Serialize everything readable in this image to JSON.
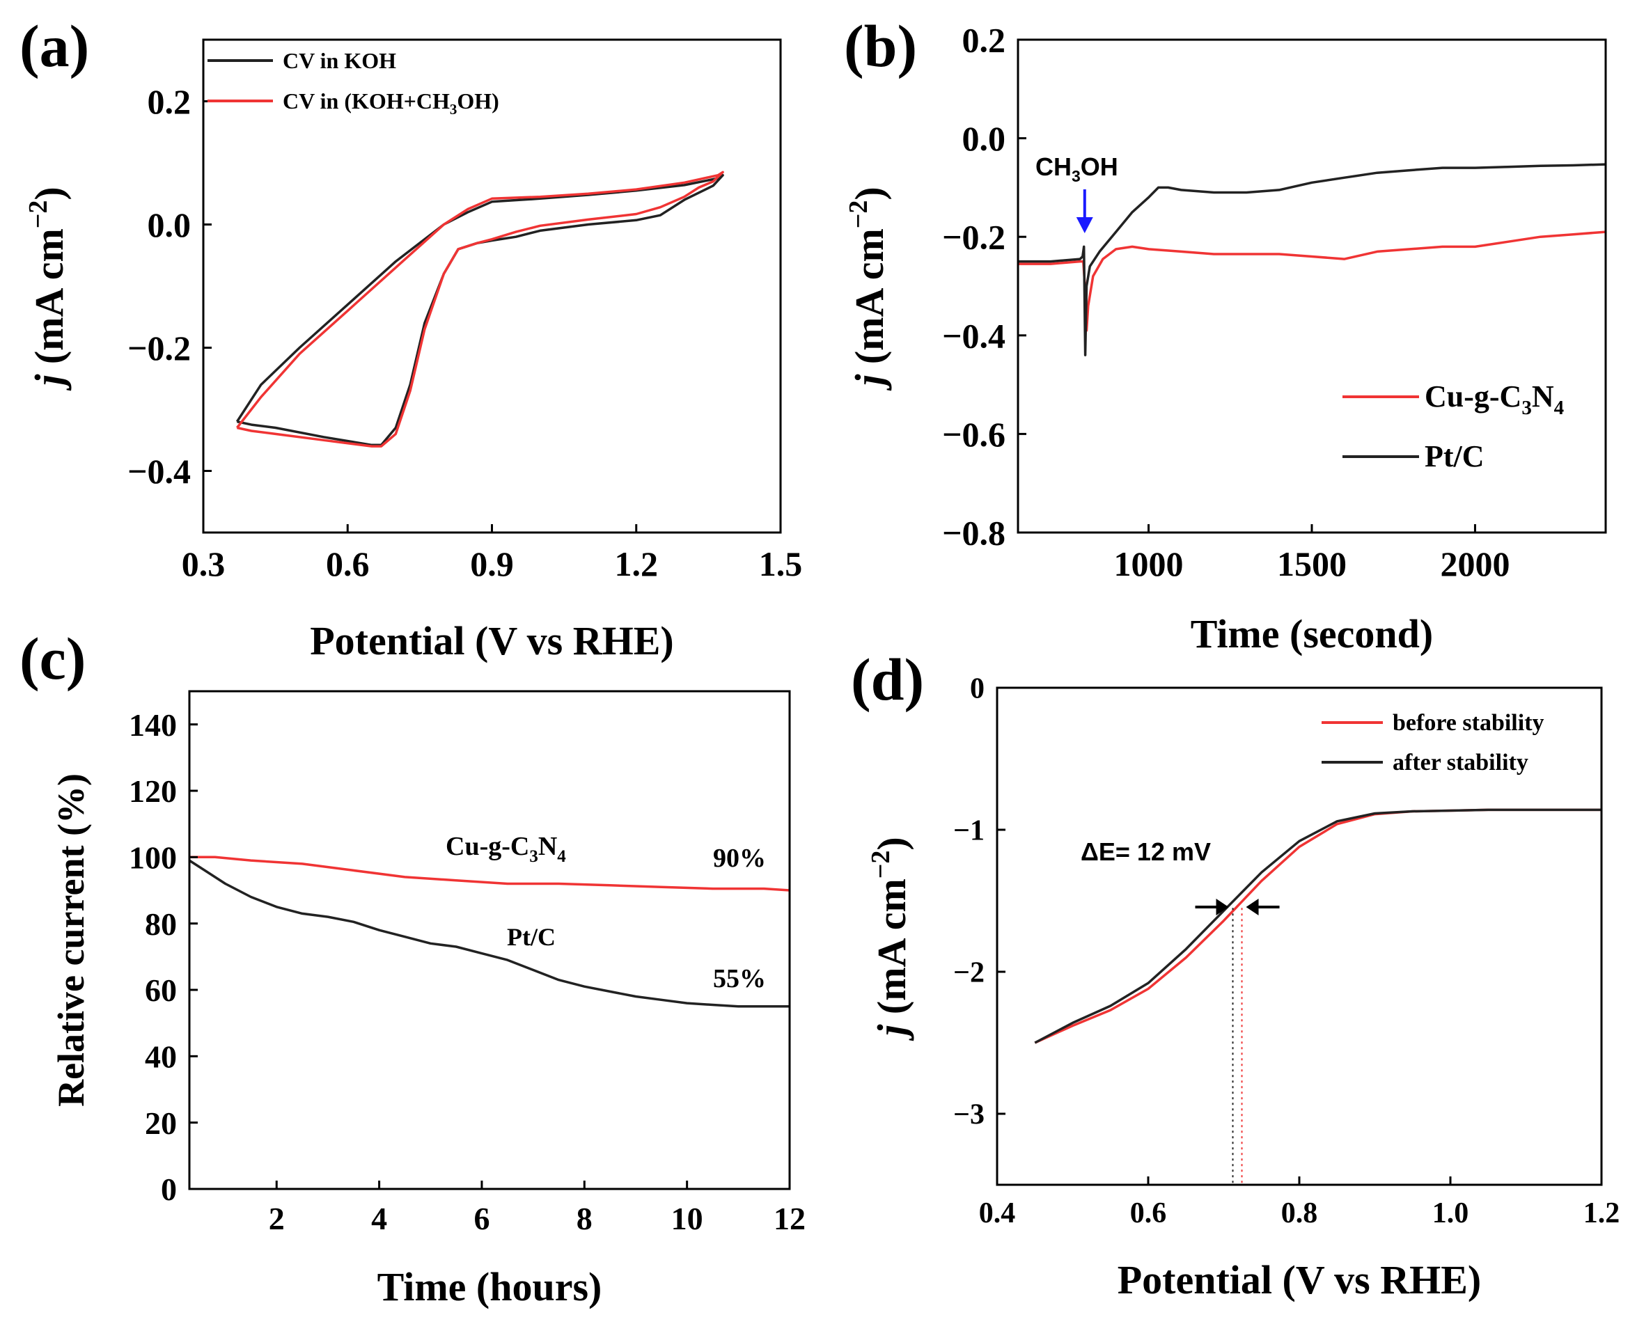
{
  "colors": {
    "red": "#f03434",
    "black": "#222222",
    "blue": "#1a1aff"
  },
  "chart_data": [
    {
      "id": "a",
      "panel_label": "(a)",
      "type": "line",
      "xlabel": "Potential (V vs RHE)",
      "ylabel": "j (mA cm-2)",
      "xlim": [
        0.3,
        1.5
      ],
      "ylim": [
        -0.5,
        0.3
      ],
      "xticks": [
        0.3,
        0.6,
        0.9,
        1.2,
        1.5
      ],
      "xtick_labels": [
        "0.3",
        "0.6",
        "0.9",
        "1.2",
        "1.5"
      ],
      "yticks": [
        -0.4,
        -0.2,
        0.0,
        0.2
      ],
      "ytick_labels": [
        "-0.4",
        "-0.2",
        "0.0",
        "0.2"
      ],
      "legend": "top-left",
      "series": [
        {
          "name": "CV in KOH",
          "color": "black",
          "x": [
            0.37,
            0.42,
            0.5,
            0.6,
            0.7,
            0.8,
            0.85,
            0.9,
            1.0,
            1.1,
            1.2,
            1.3,
            1.37,
            1.38,
            1.36,
            1.3,
            1.25,
            1.2,
            1.1,
            1.0,
            0.95,
            0.9,
            0.87,
            0.83,
            0.8,
            0.76,
            0.73,
            0.7,
            0.67,
            0.65,
            0.55,
            0.45,
            0.4,
            0.37
          ],
          "y": [
            -0.32,
            -0.26,
            -0.2,
            -0.13,
            -0.06,
            0.0,
            0.02,
            0.037,
            0.042,
            0.048,
            0.055,
            0.064,
            0.075,
            0.08,
            0.063,
            0.04,
            0.015,
            0.007,
            0.0,
            -0.01,
            -0.02,
            -0.026,
            -0.03,
            -0.04,
            -0.08,
            -0.16,
            -0.26,
            -0.33,
            -0.358,
            -0.358,
            -0.345,
            -0.33,
            -0.325,
            -0.32
          ]
        },
        {
          "name": "CV in (KOH+CH3OH)",
          "color": "red",
          "x": [
            0.37,
            0.42,
            0.5,
            0.6,
            0.7,
            0.8,
            0.85,
            0.9,
            1.0,
            1.1,
            1.2,
            1.3,
            1.37,
            1.38,
            1.36,
            1.33,
            1.3,
            1.25,
            1.2,
            1.1,
            1.0,
            0.95,
            0.9,
            0.87,
            0.83,
            0.8,
            0.76,
            0.73,
            0.7,
            0.67,
            0.65,
            0.55,
            0.45,
            0.4,
            0.37
          ],
          "y": [
            -0.33,
            -0.28,
            -0.21,
            -0.14,
            -0.07,
            0.0,
            0.025,
            0.042,
            0.045,
            0.05,
            0.057,
            0.068,
            0.08,
            0.085,
            0.07,
            0.06,
            0.045,
            0.028,
            0.017,
            0.008,
            -0.002,
            -0.012,
            -0.024,
            -0.03,
            -0.04,
            -0.08,
            -0.17,
            -0.27,
            -0.34,
            -0.36,
            -0.36,
            -0.35,
            -0.34,
            -0.335,
            -0.33
          ]
        }
      ]
    },
    {
      "id": "b",
      "panel_label": "(b)",
      "type": "line",
      "xlabel": "Time (second)",
      "ylabel": "j (mA cm-2)",
      "xlim": [
        600,
        2400
      ],
      "ylim": [
        -0.8,
        0.2
      ],
      "xticks": [
        1000,
        1500,
        2000
      ],
      "xtick_labels": [
        "1000",
        "1500",
        "2000"
      ],
      "yticks": [
        -0.8,
        -0.6,
        -0.4,
        -0.2,
        0.0,
        0.2
      ],
      "ytick_labels": [
        "-0.8",
        "-0.6",
        "-0.4",
        "-0.2",
        "0.0",
        "0.2"
      ],
      "legend": "bottom-right",
      "annotation": "CH3OH",
      "annotation_x": 800,
      "series": [
        {
          "name": "Cu-g-C3N4",
          "color": "red",
          "x": [
            600,
            700,
            790,
            800,
            805,
            810,
            815,
            830,
            860,
            900,
            950,
            1000,
            1100,
            1200,
            1300,
            1400,
            1500,
            1600,
            1700,
            1800,
            1900,
            2000,
            2100,
            2200,
            2300,
            2400
          ],
          "y": [
            -0.255,
            -0.255,
            -0.25,
            -0.25,
            -0.3,
            -0.39,
            -0.34,
            -0.28,
            -0.245,
            -0.225,
            -0.22,
            -0.225,
            -0.23,
            -0.235,
            -0.235,
            -0.235,
            -0.24,
            -0.245,
            -0.23,
            -0.225,
            -0.22,
            -0.22,
            -0.21,
            -0.2,
            -0.195,
            -0.19
          ]
        },
        {
          "name": "Pt/C",
          "color": "black",
          "x": [
            600,
            700,
            790,
            798,
            802,
            806,
            810,
            820,
            850,
            900,
            950,
            1000,
            1030,
            1060,
            1100,
            1200,
            1300,
            1400,
            1500,
            1600,
            1700,
            1800,
            1900,
            2000,
            2100,
            2200,
            2300,
            2400
          ],
          "y": [
            -0.25,
            -0.25,
            -0.245,
            -0.24,
            -0.22,
            -0.44,
            -0.3,
            -0.26,
            -0.23,
            -0.19,
            -0.15,
            -0.12,
            -0.1,
            -0.1,
            -0.105,
            -0.11,
            -0.11,
            -0.105,
            -0.09,
            -0.08,
            -0.07,
            -0.065,
            -0.06,
            -0.06,
            -0.058,
            -0.056,
            -0.055,
            -0.053
          ]
        }
      ]
    },
    {
      "id": "c",
      "panel_label": "(c)",
      "type": "line",
      "xlabel": "Time (hours)",
      "ylabel": "Relative current (%)",
      "xlim": [
        0.3,
        12
      ],
      "ylim": [
        0,
        150
      ],
      "xticks": [
        2,
        4,
        6,
        8,
        10,
        12
      ],
      "xtick_labels": [
        "2",
        "4",
        "6",
        "8",
        "10",
        "12"
      ],
      "yticks": [
        0,
        20,
        40,
        60,
        80,
        100,
        120,
        140
      ],
      "ytick_labels": [
        "0",
        "20",
        "40",
        "60",
        "80",
        "100",
        "120",
        "140"
      ],
      "end_labels": [
        "90%",
        "55%"
      ],
      "series": [
        {
          "name": "Cu-g-C3N4",
          "color": "red",
          "x": [
            0.3,
            0.8,
            1.5,
            2.5,
            3.5,
            4.5,
            5.5,
            6.5,
            7.5,
            8.5,
            9.5,
            10.5,
            11.5,
            12
          ],
          "y": [
            100,
            100,
            99,
            98,
            96,
            94,
            93,
            92,
            92,
            91.5,
            91,
            90.5,
            90.5,
            90
          ]
        },
        {
          "name": "Pt/C",
          "color": "black",
          "x": [
            0.3,
            0.6,
            1.0,
            1.5,
            2.0,
            2.5,
            3.0,
            3.5,
            4.0,
            4.5,
            5.0,
            5.5,
            6.0,
            6.5,
            7.0,
            7.5,
            8.0,
            8.5,
            9.0,
            9.5,
            10.0,
            10.5,
            11.0,
            11.5,
            12.0
          ],
          "y": [
            99,
            96,
            92,
            88,
            85,
            83,
            82,
            80.5,
            78,
            76,
            74,
            73,
            71,
            69,
            66,
            63,
            61,
            59.5,
            58,
            57,
            56,
            55.5,
            55,
            55,
            55
          ]
        }
      ]
    },
    {
      "id": "d",
      "panel_label": "(d)",
      "type": "line",
      "xlabel": "Potential (V vs RHE)",
      "ylabel": "j (mA cm-2)",
      "xlim": [
        0.4,
        1.2
      ],
      "ylim": [
        -3.5,
        0
      ],
      "xticks": [
        0.4,
        0.6,
        0.8,
        1.0,
        1.2
      ],
      "xtick_labels": [
        "0.4",
        "0.6",
        "0.8",
        "1.0",
        "1.2"
      ],
      "yticks": [
        -3,
        -2,
        -1,
        0
      ],
      "ytick_labels": [
        "-3",
        "-2",
        "-1",
        "0"
      ],
      "legend": "top-right",
      "annotation": "ΔE= 12 mV",
      "marker_x": [
        0.712,
        0.724
      ],
      "series": [
        {
          "name": "before stability",
          "color": "red",
          "x": [
            0.45,
            0.5,
            0.55,
            0.6,
            0.65,
            0.7,
            0.75,
            0.8,
            0.85,
            0.9,
            0.95,
            1.0,
            1.05,
            1.1,
            1.15,
            1.2
          ],
          "y": [
            -2.5,
            -2.38,
            -2.27,
            -2.12,
            -1.9,
            -1.64,
            -1.36,
            -1.12,
            -0.96,
            -0.89,
            -0.87,
            -0.865,
            -0.86,
            -0.86,
            -0.86,
            -0.86
          ]
        },
        {
          "name": "after stability",
          "color": "black",
          "x": [
            0.45,
            0.5,
            0.55,
            0.6,
            0.65,
            0.7,
            0.75,
            0.8,
            0.85,
            0.9,
            0.95,
            1.0,
            1.05,
            1.1,
            1.15,
            1.2
          ],
          "y": [
            -2.5,
            -2.36,
            -2.24,
            -2.08,
            -1.84,
            -1.57,
            -1.3,
            -1.08,
            -0.94,
            -0.885,
            -0.87,
            -0.865,
            -0.86,
            -0.86,
            -0.86,
            -0.86
          ]
        }
      ]
    }
  ]
}
